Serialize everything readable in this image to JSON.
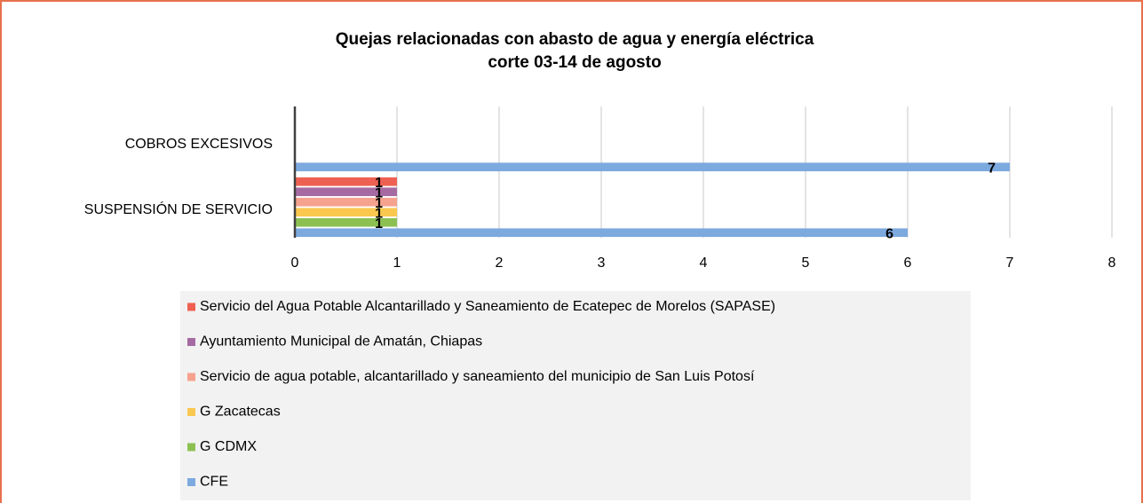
{
  "chart_data": {
    "type": "barh",
    "title": "Quejas relacionadas con abasto de agua y energía eléctrica",
    "subtitle": "corte 03-14 de agosto",
    "categories": [
      "COBROS EXCESIVOS",
      "SUSPENSIÓN DE SERVICIO"
    ],
    "series": [
      {
        "name": "Servicio del Agua Potable Alcantarillado y Saneamiento de Ecatepec de Morelos (SAPASE)",
        "color": "#ee6152",
        "values": [
          null,
          1
        ]
      },
      {
        "name": "Ayuntamiento Municipal de Amatán, Chiapas",
        "color": "#a66aa3",
        "values": [
          null,
          1
        ]
      },
      {
        "name": "Servicio de agua potable, alcantarillado y saneamiento del municipio de San Luis Potosí",
        "color": "#f5a28e",
        "values": [
          null,
          1
        ]
      },
      {
        "name": "G Zacatecas",
        "color": "#fac84f",
        "values": [
          null,
          1
        ]
      },
      {
        "name": "G CDMX",
        "color": "#8cc152",
        "values": [
          null,
          1
        ]
      },
      {
        "name": "CFE",
        "color": "#7ca9de",
        "values": [
          7,
          6
        ]
      }
    ],
    "xlim": [
      0,
      8
    ],
    "xticks": [
      0,
      1,
      2,
      3,
      4,
      5,
      6,
      7,
      8
    ],
    "grid": true,
    "legend": "bottom"
  }
}
